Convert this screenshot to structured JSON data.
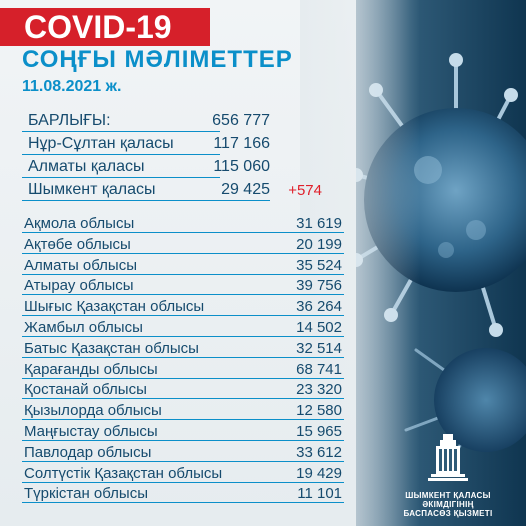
{
  "title": "COVID-19",
  "subtitle": "СОҢҒЫ МӘЛІМЕТТЕР",
  "date": "11.08.2021 ж.",
  "summary": [
    {
      "label": "БАРЛЫҒЫ:",
      "value": "656 777"
    },
    {
      "label": "Нұр-Сұлтан қаласы",
      "value": "117 166"
    },
    {
      "label": "Алматы қаласы",
      "value": "115 060"
    },
    {
      "label": "Шымкент қаласы",
      "value": "29 425",
      "delta": "+574"
    }
  ],
  "regions": [
    {
      "label": "Ақмола облысы",
      "value": "31 619"
    },
    {
      "label": "Ақтөбе облысы",
      "value": "20 199"
    },
    {
      "label": "Алматы облысы",
      "value": "35 524"
    },
    {
      "label": "Атырау облысы",
      "value": "39 756"
    },
    {
      "label": "Шығыс Қазақстан облысы",
      "value": "36 264"
    },
    {
      "label": "Жамбыл облысы",
      "value": "14 502"
    },
    {
      "label": "Батыс Қазақстан облысы",
      "value": "32 514"
    },
    {
      "label": "Қарағанды облысы",
      "value": "68 741"
    },
    {
      "label": "Қостанай облысы",
      "value": "23 320"
    },
    {
      "label": "Қызылорда облысы",
      "value": "12 580"
    },
    {
      "label": "Маңғыстау облысы",
      "value": "15 965"
    },
    {
      "label": "Павлодар облысы",
      "value": "33 612"
    },
    {
      "label": "Солтүстік Қазақстан облысы",
      "value": "19 429"
    },
    {
      "label": "Түркістан облысы",
      "value": "11 101"
    }
  ],
  "logo": {
    "line1": "ШЫМКЕНТ ҚАЛАСЫ ӘКІМДІГІНІҢ",
    "line2": "БАСПАСӨЗ ҚЫЗМЕТІ"
  },
  "colors": {
    "title_bg": "#d6202a",
    "accent": "#0b8fc9",
    "text": "#164b6e",
    "delta": "#e01f2a"
  }
}
